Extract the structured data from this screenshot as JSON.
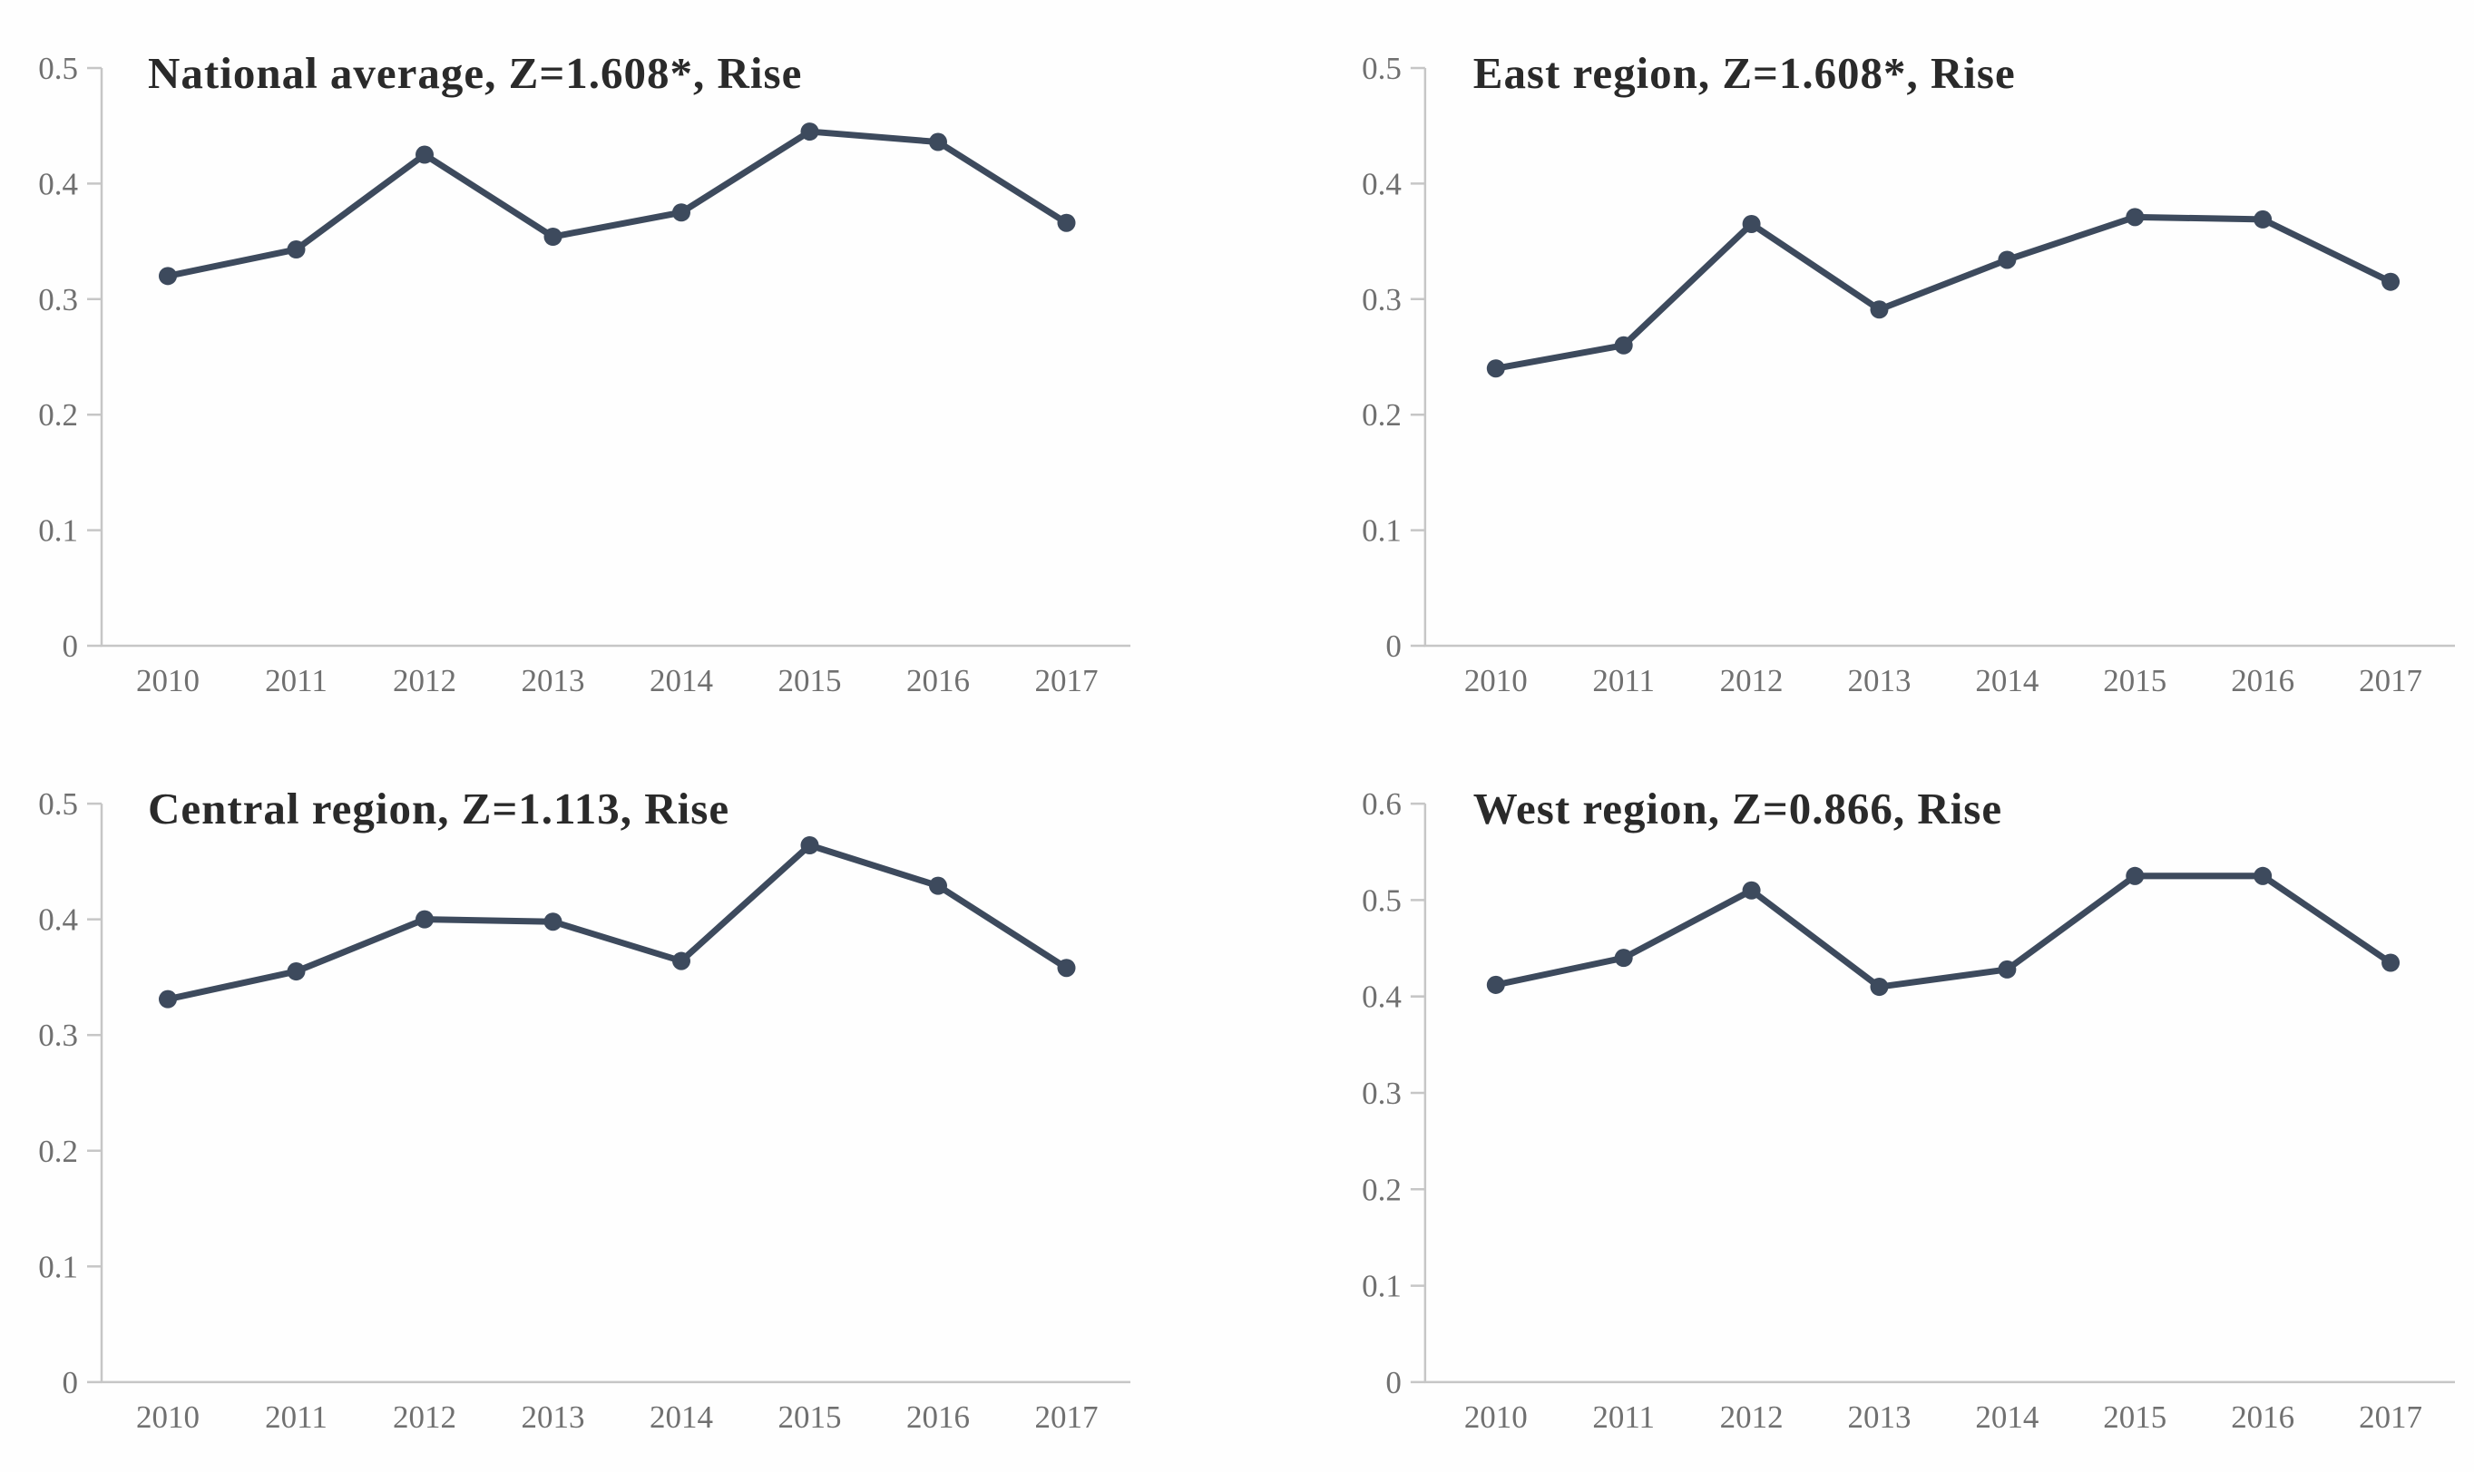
{
  "style": {
    "background": "#fefefe",
    "line_color": "#3d4a5d",
    "axis_color": "#c6c6c6",
    "tick_label_color": "#707070",
    "title_color": "#2a2a2a"
  },
  "chart_data": [
    {
      "type": "line",
      "title": "National average, Z=1.608*, Rise",
      "categories": [
        "2010",
        "2011",
        "2012",
        "2013",
        "2014",
        "2015",
        "2016",
        "2017"
      ],
      "values": [
        0.32,
        0.343,
        0.425,
        0.354,
        0.375,
        0.445,
        0.436,
        0.366
      ],
      "ylim": [
        0,
        0.5
      ],
      "yticks": [
        0,
        0.1,
        0.2,
        0.3,
        0.4,
        0.5
      ],
      "ytick_labels": [
        "0",
        "0.1",
        "0.2",
        "0.3",
        "0.4",
        "0.5"
      ],
      "xlabel": "",
      "ylabel": "",
      "grid": false,
      "legend": "none",
      "marker": "circle"
    },
    {
      "type": "line",
      "title": "East region, Z=1.608*, Rise",
      "categories": [
        "2010",
        "2011",
        "2012",
        "2013",
        "2014",
        "2015",
        "2016",
        "2017"
      ],
      "values": [
        0.24,
        0.26,
        0.365,
        0.291,
        0.334,
        0.371,
        0.369,
        0.315
      ],
      "ylim": [
        0,
        0.5
      ],
      "yticks": [
        0,
        0.1,
        0.2,
        0.3,
        0.4,
        0.5
      ],
      "ytick_labels": [
        "0",
        "0.1",
        "0.2",
        "0.3",
        "0.4",
        "0.5"
      ],
      "xlabel": "",
      "ylabel": "",
      "grid": false,
      "legend": "none",
      "marker": "circle"
    },
    {
      "type": "line",
      "title": "Central region, Z=1.113, Rise",
      "categories": [
        "2010",
        "2011",
        "2012",
        "2013",
        "2014",
        "2015",
        "2016",
        "2017"
      ],
      "values": [
        0.331,
        0.355,
        0.4,
        0.398,
        0.364,
        0.464,
        0.429,
        0.358
      ],
      "ylim": [
        0,
        0.5
      ],
      "yticks": [
        0,
        0.1,
        0.2,
        0.3,
        0.4,
        0.5
      ],
      "ytick_labels": [
        "0",
        "0.1",
        "0.2",
        "0.3",
        "0.4",
        "0.5"
      ],
      "xlabel": "",
      "ylabel": "",
      "grid": false,
      "legend": "none",
      "marker": "circle"
    },
    {
      "type": "line",
      "title": "West region, Z=0.866, Rise",
      "categories": [
        "2010",
        "2011",
        "2012",
        "2013",
        "2014",
        "2015",
        "2016",
        "2017"
      ],
      "values": [
        0.412,
        0.44,
        0.51,
        0.41,
        0.428,
        0.525,
        0.525,
        0.435
      ],
      "ylim": [
        0,
        0.6
      ],
      "yticks": [
        0,
        0.1,
        0.2,
        0.3,
        0.4,
        0.5,
        0.6
      ],
      "ytick_labels": [
        "0",
        "0.1",
        "0.2",
        "0.3",
        "0.4",
        "0.5",
        "0.6"
      ],
      "xlabel": "",
      "ylabel": "",
      "grid": false,
      "legend": "none",
      "marker": "circle"
    }
  ]
}
